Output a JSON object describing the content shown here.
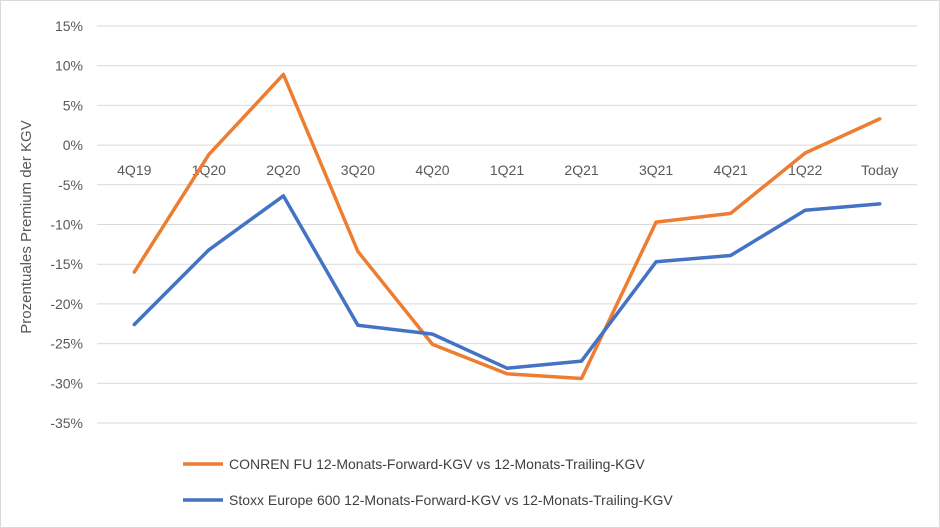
{
  "chart_data": {
    "type": "line",
    "title": "",
    "xlabel": "",
    "ylabel": "Prozentuales Premium der KGV",
    "categories": [
      "4Q19",
      "1Q20",
      "2Q20",
      "3Q20",
      "4Q20",
      "1Q21",
      "2Q21",
      "3Q21",
      "4Q21",
      "1Q22",
      "Today"
    ],
    "ylim": [
      -35,
      15
    ],
    "yticks": [
      15,
      10,
      5,
      0,
      -5,
      -10,
      -15,
      -20,
      -25,
      -30,
      -35
    ],
    "ytick_labels": [
      "15%",
      "10%",
      "5%",
      "0%",
      "-5%",
      "-10%",
      "-15%",
      "-20%",
      "-25%",
      "-30%",
      "-35%"
    ],
    "grid": true,
    "legend_position": "bottom",
    "series": [
      {
        "name": "CONREN FU 12-Monats-Forward-KGV vs 12-Monats-Trailing-KGV",
        "color": "#ED7D31",
        "values": [
          -16.0,
          -1.2,
          8.9,
          -13.4,
          -25.1,
          -28.8,
          -29.4,
          -9.7,
          -8.6,
          -1.0,
          3.3
        ]
      },
      {
        "name": "Stoxx Europe 600 12-Monats-Forward-KGV vs 12-Monats-Trailing-KGV",
        "color": "#4472C4",
        "values": [
          -22.6,
          -13.2,
          -6.4,
          -22.7,
          -23.8,
          -28.1,
          -27.2,
          -14.7,
          -13.9,
          -8.2,
          -7.4
        ]
      }
    ]
  }
}
